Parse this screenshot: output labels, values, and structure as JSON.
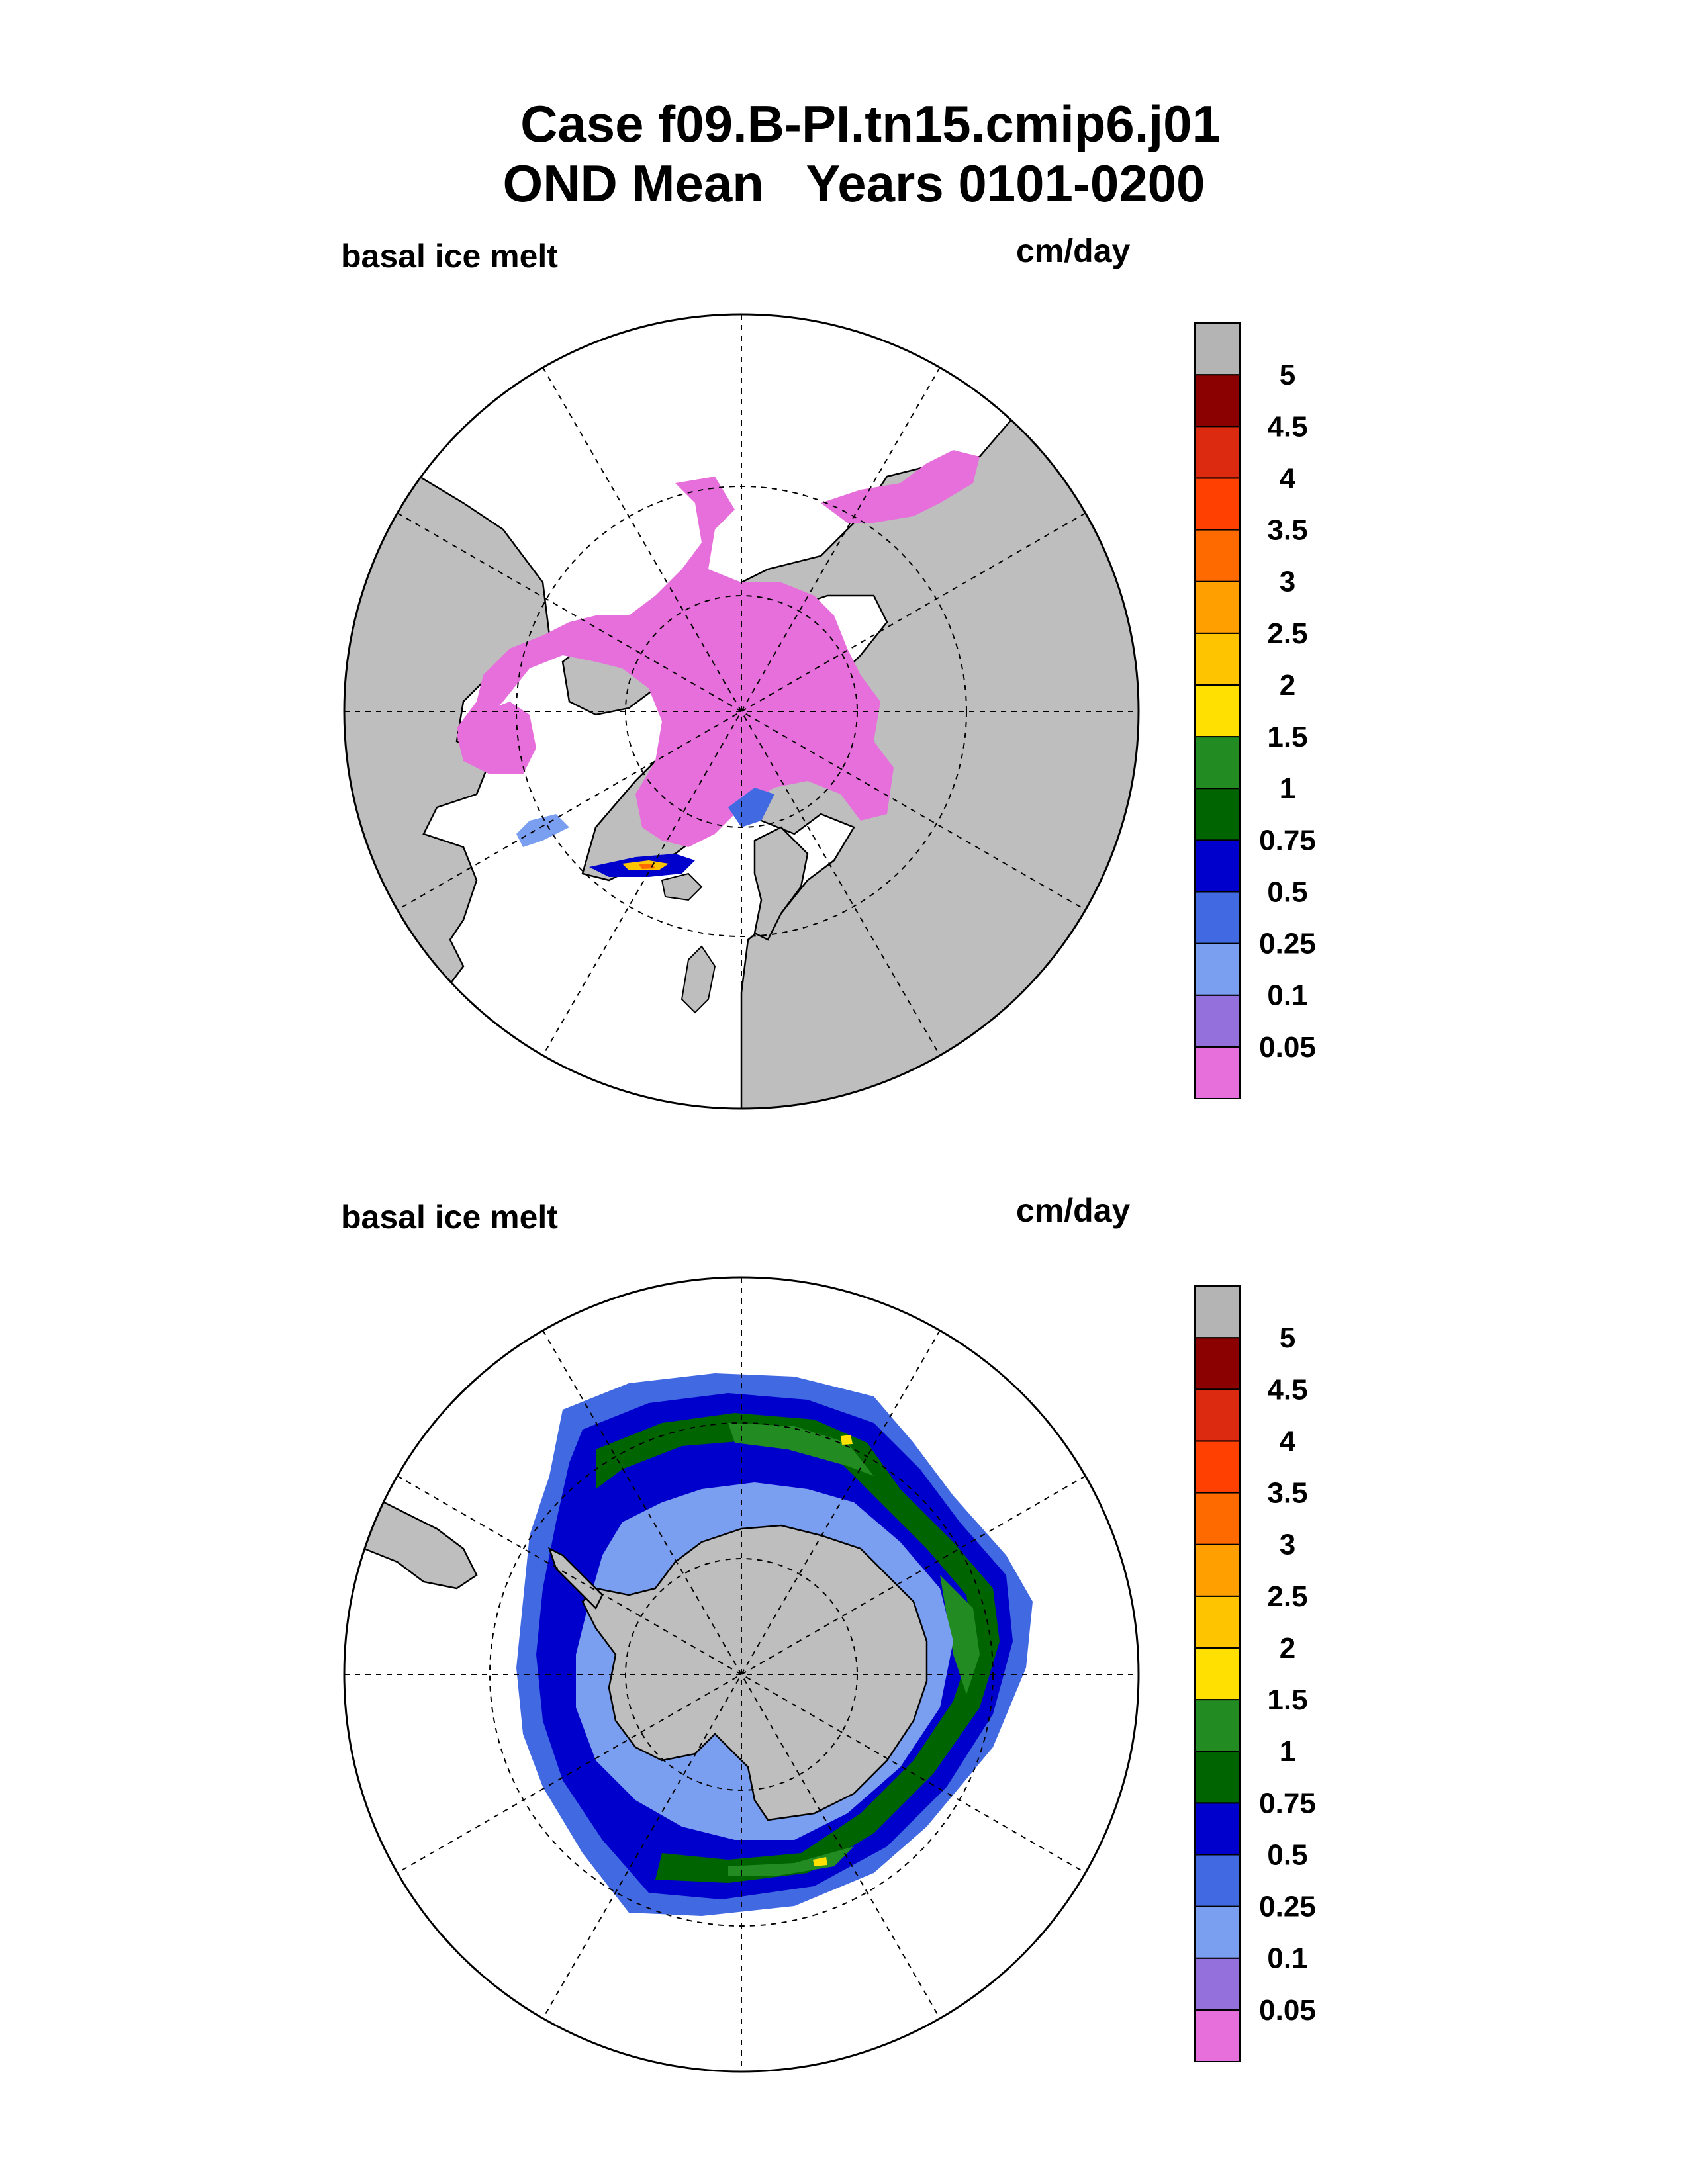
{
  "title_line1": "Case f09.B-PI.tn15.cmip6.j01",
  "title_line2": "OND Mean   Years 0101-0200",
  "colors": {
    "land": "#bebebe",
    "ocean": "#ffffff",
    "levels": [
      "#e66fdc",
      "#9370db",
      "#7b9ff0",
      "#4169e1",
      "#0000cd",
      "#006400",
      "#228b22",
      "#ffe000",
      "#ffc400",
      "#ffa000",
      "#ff6a00",
      "#ff4000",
      "#dc2a10",
      "#8b0000",
      "#b4b4b4"
    ]
  },
  "chart_data": [
    {
      "type": "heatmap",
      "projection": "north-polar-stereographic",
      "panel_title": "basal ice melt",
      "units": "cm/day",
      "colorbar_levels": [
        0.05,
        0.1,
        0.25,
        0.5,
        0.75,
        1,
        1.5,
        2,
        2.5,
        3,
        3.5,
        4,
        4.5,
        5
      ],
      "colorbar_labels": [
        "0.05",
        "0.1",
        "0.25",
        "0.5",
        "0.75",
        "1",
        "1.5",
        "2",
        "2.5",
        "3",
        "3.5",
        "4",
        "4.5",
        "5"
      ],
      "summary": "Arctic basin ice melt mostly below 0.05 cm/day; higher values (up to about 2) near southern Greenland and Barents Sea ice edge"
    },
    {
      "type": "heatmap",
      "projection": "south-polar-stereographic",
      "panel_title": "basal ice melt",
      "units": "cm/day",
      "colorbar_levels": [
        0.05,
        0.1,
        0.25,
        0.5,
        0.75,
        1,
        1.5,
        2,
        2.5,
        3,
        3.5,
        4,
        4.5,
        5
      ],
      "colorbar_labels": [
        "0.05",
        "0.1",
        "0.25",
        "0.5",
        "0.75",
        "1",
        "1.5",
        "2",
        "2.5",
        "3",
        "3.5",
        "4",
        "4.5",
        "5"
      ],
      "summary": "Ring of melt around Antarctica: 0.1-0.5 cm/day near coast, 0.75-1.5 cm/day at outer ice edge with isolated spots of 1.5-2"
    }
  ]
}
